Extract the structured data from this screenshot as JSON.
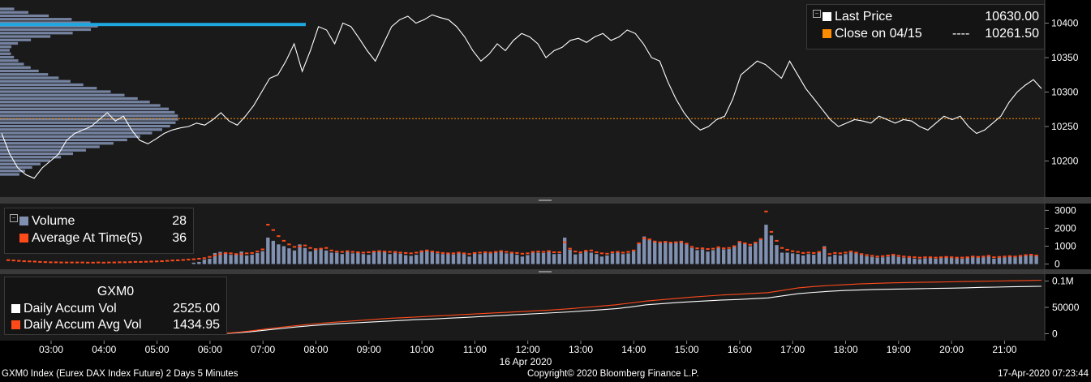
{
  "chart_data": [
    {
      "type": "line",
      "panel": "price",
      "ylim": [
        10150,
        10430
      ],
      "y_ticks": [
        "10400",
        "10350",
        "10300",
        "10250",
        "10200"
      ],
      "reference_line": {
        "name": "Close on 04/15",
        "value": 10261.5,
        "style": "dotted"
      },
      "series": [
        {
          "name": "Last Price",
          "last_value": 10630.0,
          "color": "#ffffff",
          "values": [
            10240,
            10210,
            10190,
            10180,
            10175,
            10190,
            10200,
            10210,
            10230,
            10240,
            10245,
            10250,
            10260,
            10270,
            10258,
            10265,
            10245,
            10230,
            10225,
            10232,
            10240,
            10245,
            10248,
            10250,
            10255,
            10252,
            10260,
            10270,
            10258,
            10252,
            10265,
            10280,
            10300,
            10320,
            10325,
            10345,
            10370,
            10330,
            10360,
            10395,
            10390,
            10370,
            10400,
            10395,
            10378,
            10360,
            10345,
            10370,
            10395,
            10405,
            10410,
            10400,
            10405,
            10412,
            10408,
            10405,
            10395,
            10380,
            10360,
            10345,
            10355,
            10370,
            10360,
            10375,
            10385,
            10380,
            10370,
            10350,
            10360,
            10365,
            10375,
            10378,
            10372,
            10380,
            10385,
            10375,
            10380,
            10390,
            10385,
            10370,
            10350,
            10345,
            10315,
            10290,
            10270,
            10255,
            10245,
            10250,
            10260,
            10265,
            10290,
            10325,
            10335,
            10345,
            10340,
            10330,
            10320,
            10345,
            10325,
            10305,
            10290,
            10275,
            10260,
            10250,
            10255,
            10260,
            10258,
            10255,
            10265,
            10260,
            10255,
            10260,
            10258,
            10250,
            10245,
            10255,
            10265,
            10260,
            10265,
            10250,
            10240,
            10245,
            10255,
            10265,
            10285,
            10300,
            10310,
            10318,
            10305
          ]
        }
      ],
      "volume_profile_color": "#7f8fb0",
      "volume_profile_highlight_color": "#1ea7e0"
    },
    {
      "type": "bar",
      "panel": "volume",
      "ylim": [
        -200,
        3200
      ],
      "y_ticks": [
        "3000",
        "2000",
        "1000",
        "0"
      ],
      "series": [
        {
          "name": "Volume",
          "last_value": 28,
          "color": "#8090b0",
          "values": [
            0,
            0,
            0,
            0,
            0,
            0,
            0,
            0,
            0,
            0,
            0,
            0,
            0,
            0,
            0,
            0,
            0,
            0,
            0,
            0,
            0,
            0,
            0,
            0,
            0,
            0,
            0,
            0,
            0,
            0,
            0,
            0,
            0,
            0,
            0,
            80,
            120,
            250,
            300,
            620,
            680,
            620,
            520,
            560,
            700,
            480,
            520,
            620,
            720,
            1480,
            1300,
            1100,
            1000,
            880,
            760,
            1100,
            900,
            700,
            880,
            860,
            760,
            640,
            640,
            560,
            720,
            600,
            620,
            560,
            520,
            700,
            760,
            720,
            560,
            720,
            580,
            500,
            460,
            520,
            760,
            800,
            720,
            600,
            560,
            600,
            540,
            640,
            560,
            420,
            640,
            560,
            680,
            600,
            700,
            760,
            600,
            620,
            520,
            420,
            500,
            680,
            640,
            620,
            760,
            560,
            580,
            1480,
            800,
            540,
            600,
            720,
            640,
            560,
            420,
            480,
            600,
            640,
            560,
            600,
            720,
            1200,
            1540,
            1400,
            1300,
            1200,
            1280,
            1220,
            1240,
            1300,
            1100,
            900,
            780,
            820,
            700,
            780,
            900,
            820,
            840,
            980,
            1260,
            1160,
            1000,
            1200,
            1400,
            2200,
            1600,
            1060,
            640,
            640,
            600,
            560,
            480,
            560,
            520,
            640,
            1000,
            420,
            520,
            480,
            560,
            660,
            600,
            520,
            440,
            400,
            360,
            380,
            420,
            500,
            400,
            360,
            360,
            300,
            280,
            320,
            340,
            300,
            340,
            380,
            340,
            320,
            300,
            360,
            400,
            360,
            380,
            440,
            300,
            360,
            380,
            420,
            380,
            440,
            480,
            520,
            440
          ]
        },
        {
          "name": "Average At Time(5)",
          "last_value": 36,
          "color": "#ff4a1a",
          "values": [
            220,
            200,
            180,
            160,
            150,
            140,
            120,
            110,
            100,
            100,
            90,
            90,
            90,
            90,
            90,
            80,
            80,
            90,
            80,
            90,
            90,
            100,
            100,
            110,
            120,
            120,
            130,
            140,
            150,
            160,
            180,
            200,
            210,
            230,
            250,
            270,
            300,
            330,
            400,
            480,
            560,
            620,
            600,
            560,
            560,
            600,
            620,
            700,
            820,
            2200,
            1900,
            1560,
            1300,
            1100,
            960,
            980,
            1040,
            900,
            820,
            860,
            900,
            760,
            700,
            680,
            720,
            680,
            660,
            640,
            660,
            700,
            720,
            700,
            680,
            660,
            640,
            620,
            600,
            640,
            700,
            760,
            700,
            660,
            620,
            600,
            600,
            640,
            600,
            560,
            620,
            640,
            660,
            640,
            680,
            720,
            680,
            640,
            620,
            580,
            600,
            680,
            700,
            680,
            720,
            660,
            660,
            1220,
            860,
            700,
            660,
            740,
            760,
            660,
            600,
            580,
            660,
            680,
            640,
            680,
            760,
            1160,
            1440,
            1380,
            1260,
            1220,
            1240,
            1200,
            1220,
            1240,
            1140,
            960,
            880,
            880,
            840,
            860,
            940,
            880,
            900,
            1000,
            1240,
            1160,
            1080,
            1200,
            1400,
            2940,
            1800,
            1300,
            900,
            800,
            720,
            680,
            620,
            640,
            620,
            680,
            900,
            560,
            620,
            600,
            640,
            700,
            640,
            560,
            500,
            460,
            420,
            440,
            480,
            520,
            460,
            420,
            400,
            380,
            360,
            380,
            380,
            360,
            380,
            400,
            380,
            360,
            360,
            380,
            420,
            400,
            420,
            460,
            380,
            400,
            420,
            440,
            420,
            460,
            500,
            520,
            480
          ]
        }
      ]
    },
    {
      "type": "line",
      "panel": "accumulated",
      "ylim": [
        -10000,
        110000
      ],
      "y_ticks": [
        "0.1M",
        "50000",
        "0"
      ],
      "series": [
        {
          "name": "Daily Accum Vol",
          "last_value": 2525.0,
          "color": "#ffffff",
          "values": [
            0,
            0,
            0,
            0,
            0,
            0,
            0,
            0,
            0,
            0,
            0,
            0,
            0,
            0,
            200,
            1500,
            4000,
            7000,
            10000,
            13000,
            15500,
            17500,
            19500,
            21000,
            22500,
            24000,
            25500,
            27000,
            28000,
            29500,
            31000,
            32500,
            34000,
            35500,
            37000,
            38500,
            40000,
            41500,
            43500,
            45500,
            47500,
            51000,
            55000,
            57000,
            59000,
            61000,
            62500,
            64000,
            65000,
            66500,
            68000,
            72000,
            76000,
            78500,
            80500,
            82000,
            83000,
            84000,
            84500,
            85000,
            85500,
            86000,
            86500,
            87000,
            88000,
            88500,
            89000,
            89500,
            90000
          ]
        },
        {
          "name": "Daily Accum Avg Vol",
          "last_value": 1434.95,
          "color": "#ff4a1a",
          "values": [
            0,
            0,
            0,
            0,
            0,
            0,
            0,
            0,
            0,
            0,
            0,
            0,
            0,
            0,
            500,
            2500,
            5500,
            9000,
            12500,
            15500,
            18500,
            21000,
            23000,
            25000,
            27000,
            29000,
            30500,
            32000,
            33500,
            35000,
            36500,
            38000,
            39500,
            41000,
            42500,
            44000,
            45500,
            47500,
            50000,
            52500,
            55000,
            58500,
            62000,
            64500,
            67000,
            69500,
            71500,
            73500,
            75000,
            76500,
            78000,
            82500,
            87000,
            89500,
            91500,
            93000,
            94500,
            95500,
            96500,
            97000,
            97500,
            98000,
            98500,
            99000,
            99500,
            100000,
            100500,
            101000,
            101500
          ]
        }
      ]
    }
  ],
  "x_axis": {
    "tick_labels": [
      "03:00",
      "04:00",
      "05:00",
      "06:00",
      "07:00",
      "08:00",
      "09:00",
      "10:00",
      "11:00",
      "12:00",
      "13:00",
      "14:00",
      "15:00",
      "16:00",
      "17:00",
      "18:00",
      "19:00",
      "20:00",
      "21:00"
    ],
    "date_label": "16 Apr 2020"
  },
  "legend_price": {
    "last_price_label": "Last Price",
    "last_price_value": "10630.00",
    "close_label": "Close on 04/15",
    "close_dashes": "----",
    "close_value": "10261.50",
    "white_swatch": "#ffffff",
    "orange_swatch": "#ff8c00"
  },
  "legend_volume": {
    "volume_label": "Volume",
    "volume_value": "28",
    "avg_label": "Average At Time(5)",
    "avg_value": "36"
  },
  "legend_accum": {
    "title": "GXM0",
    "accum_label": "Daily Accum Vol",
    "accum_value": "2525.00",
    "avg_label": "Daily Accum Avg Vol",
    "avg_value": "1434.95"
  },
  "footer": {
    "left": "GXM0 Index (Eurex DAX Index Future) 2 Days 5 Minutes",
    "center": "Copyright© 2020 Bloomberg Finance L.P.",
    "right": "17-Apr-2020 07:23:44"
  }
}
